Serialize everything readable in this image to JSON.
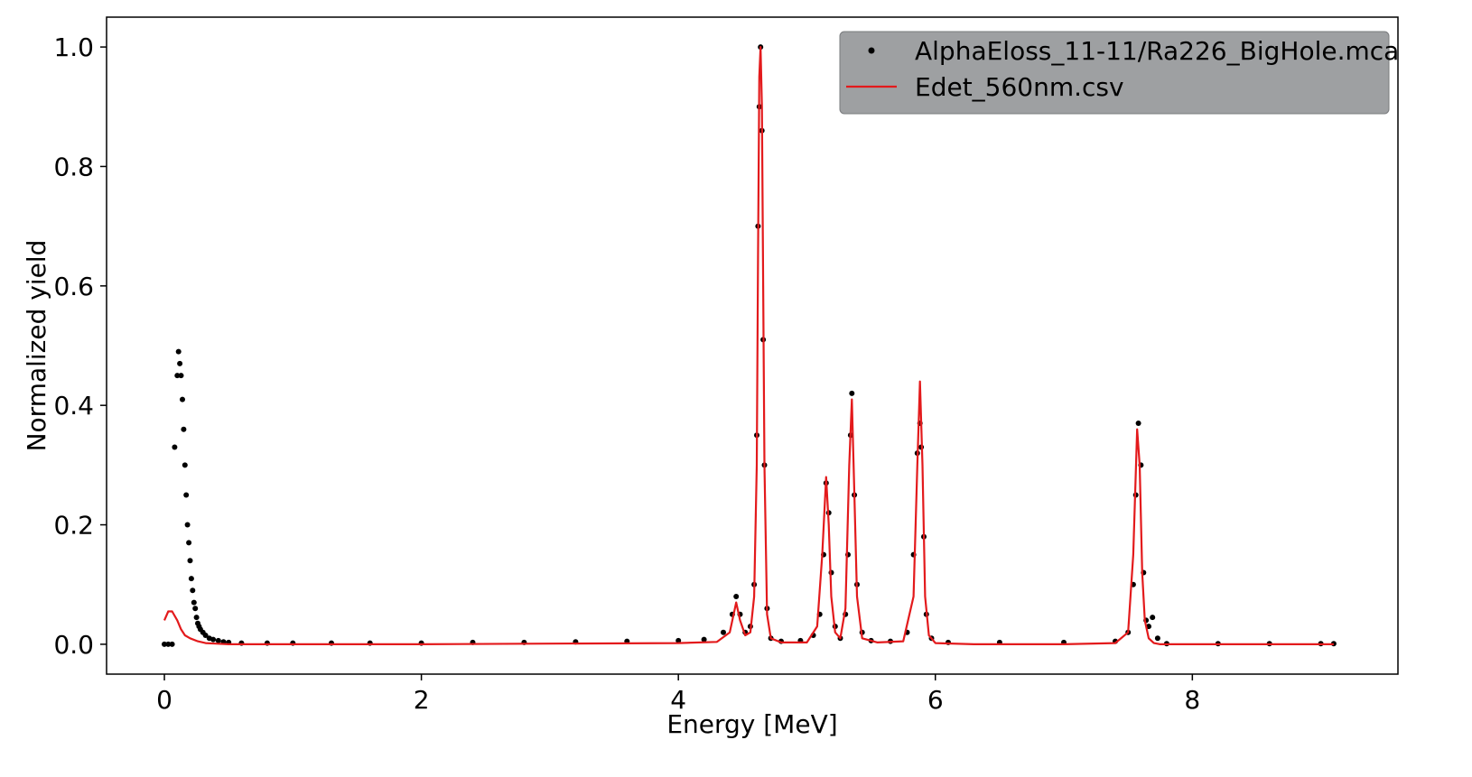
{
  "chart_data": {
    "type": "scatter",
    "xlabel": "Energy [MeV]",
    "ylabel": "Normalized yield",
    "xlim": [
      -0.45,
      9.6
    ],
    "ylim": [
      -0.05,
      1.05
    ],
    "x_ticks": [
      0,
      2,
      4,
      6,
      8
    ],
    "x_tick_labels": [
      "0",
      "2",
      "4",
      "6",
      "8"
    ],
    "y_ticks": [
      0.0,
      0.2,
      0.4,
      0.6,
      0.8,
      1.0
    ],
    "y_tick_labels": [
      "0.0",
      "0.2",
      "0.4",
      "0.6",
      "0.8",
      "1.0"
    ],
    "grid": false,
    "legend_position": "top-right",
    "series": [
      {
        "name": "AlphaEloss_11-11/Ra226_BigHole.mca",
        "style": "scatter",
        "color": "#000000",
        "x": [
          0.0,
          0.03,
          0.06,
          0.08,
          0.1,
          0.11,
          0.12,
          0.13,
          0.14,
          0.15,
          0.16,
          0.17,
          0.18,
          0.19,
          0.2,
          0.21,
          0.22,
          0.23,
          0.24,
          0.25,
          0.26,
          0.27,
          0.28,
          0.3,
          0.32,
          0.35,
          0.38,
          0.42,
          0.46,
          0.5,
          0.6,
          0.8,
          1.0,
          1.3,
          1.6,
          2.0,
          2.4,
          2.8,
          3.2,
          3.6,
          4.0,
          4.2,
          4.35,
          4.42,
          4.45,
          4.48,
          4.52,
          4.56,
          4.59,
          4.61,
          4.62,
          4.63,
          4.64,
          4.65,
          4.66,
          4.67,
          4.69,
          4.72,
          4.8,
          4.95,
          5.05,
          5.1,
          5.13,
          5.15,
          5.17,
          5.19,
          5.22,
          5.26,
          5.3,
          5.32,
          5.34,
          5.35,
          5.37,
          5.39,
          5.43,
          5.5,
          5.65,
          5.78,
          5.83,
          5.86,
          5.88,
          5.89,
          5.91,
          5.93,
          5.97,
          6.1,
          6.5,
          7.0,
          7.4,
          7.5,
          7.54,
          7.56,
          7.58,
          7.6,
          7.62,
          7.64,
          7.66,
          7.69,
          7.73,
          7.8,
          8.2,
          8.6,
          9.0,
          9.1
        ],
        "y": [
          0.0,
          0.0,
          0.0,
          0.33,
          0.45,
          0.49,
          0.47,
          0.45,
          0.41,
          0.36,
          0.3,
          0.25,
          0.2,
          0.17,
          0.14,
          0.11,
          0.09,
          0.07,
          0.06,
          0.045,
          0.035,
          0.03,
          0.025,
          0.02,
          0.015,
          0.01,
          0.008,
          0.006,
          0.004,
          0.003,
          0.002,
          0.002,
          0.002,
          0.002,
          0.002,
          0.002,
          0.003,
          0.003,
          0.004,
          0.005,
          0.006,
          0.008,
          0.02,
          0.05,
          0.08,
          0.05,
          0.02,
          0.03,
          0.1,
          0.35,
          0.7,
          0.9,
          1.0,
          0.86,
          0.51,
          0.3,
          0.06,
          0.01,
          0.005,
          0.006,
          0.015,
          0.05,
          0.15,
          0.27,
          0.22,
          0.12,
          0.03,
          0.01,
          0.05,
          0.15,
          0.35,
          0.42,
          0.25,
          0.1,
          0.02,
          0.006,
          0.005,
          0.02,
          0.15,
          0.32,
          0.37,
          0.33,
          0.18,
          0.05,
          0.01,
          0.003,
          0.003,
          0.003,
          0.005,
          0.02,
          0.1,
          0.25,
          0.37,
          0.3,
          0.12,
          0.04,
          0.03,
          0.045,
          0.01,
          0.001,
          0.001,
          0.001,
          0.001,
          0.001
        ]
      },
      {
        "name": "Edet_560nm.csv",
        "style": "line",
        "color": "#e31a1c",
        "x": [
          0.0,
          0.03,
          0.06,
          0.1,
          0.13,
          0.16,
          0.2,
          0.26,
          0.32,
          0.4,
          0.5,
          1.0,
          2.0,
          3.0,
          4.0,
          4.3,
          4.4,
          4.45,
          4.48,
          4.52,
          4.56,
          4.59,
          4.61,
          4.62,
          4.63,
          4.64,
          4.65,
          4.66,
          4.67,
          4.69,
          4.72,
          4.8,
          5.0,
          5.08,
          5.12,
          5.15,
          5.17,
          5.19,
          5.22,
          5.26,
          5.3,
          5.33,
          5.35,
          5.37,
          5.39,
          5.43,
          5.55,
          5.75,
          5.83,
          5.86,
          5.88,
          5.9,
          5.92,
          5.95,
          6.0,
          6.3,
          7.0,
          7.4,
          7.5,
          7.54,
          7.57,
          7.59,
          7.61,
          7.63,
          7.66,
          7.7,
          7.75,
          8.0,
          8.5,
          9.0,
          9.1
        ],
        "y": [
          0.04,
          0.055,
          0.055,
          0.04,
          0.025,
          0.015,
          0.01,
          0.005,
          0.002,
          0.001,
          0.0,
          0.0,
          0.0,
          0.001,
          0.002,
          0.004,
          0.02,
          0.07,
          0.04,
          0.015,
          0.02,
          0.08,
          0.3,
          0.65,
          0.95,
          1.0,
          0.9,
          0.6,
          0.3,
          0.05,
          0.01,
          0.003,
          0.003,
          0.03,
          0.15,
          0.28,
          0.2,
          0.08,
          0.02,
          0.01,
          0.06,
          0.3,
          0.41,
          0.25,
          0.08,
          0.01,
          0.003,
          0.005,
          0.08,
          0.3,
          0.44,
          0.3,
          0.08,
          0.015,
          0.002,
          0.0,
          0.0,
          0.002,
          0.02,
          0.15,
          0.36,
          0.3,
          0.12,
          0.04,
          0.01,
          0.002,
          0.0,
          0.0,
          0.0,
          0.0,
          0.0
        ]
      }
    ]
  }
}
